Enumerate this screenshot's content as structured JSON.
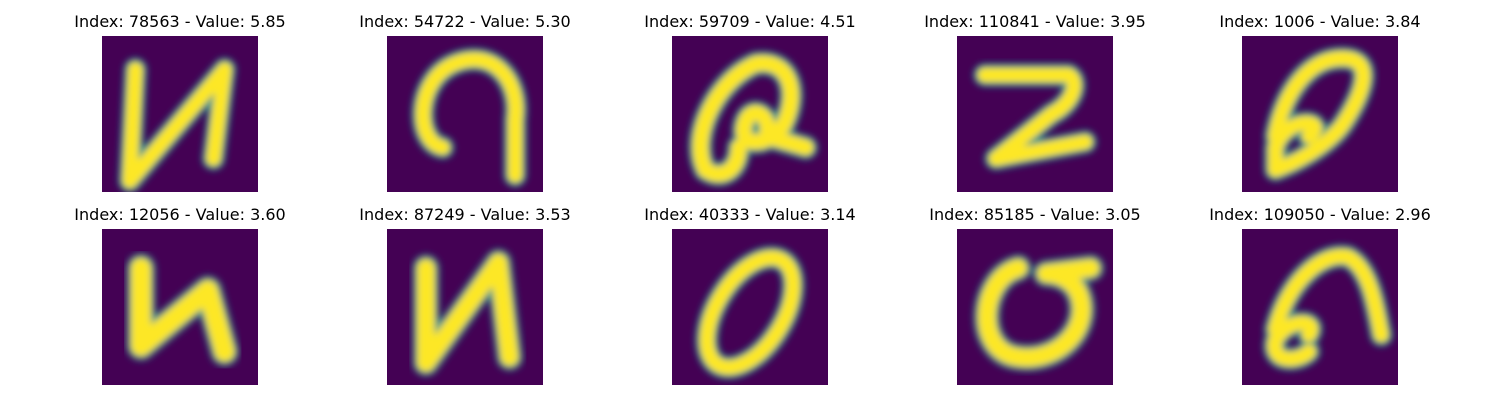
{
  "colors": {
    "background": "#440154",
    "mid": "#21918c",
    "foreground": "#fde725"
  },
  "panels": [
    {
      "title": "Index: 78563 - Value: 5.85",
      "glyph": "handwritten-N"
    },
    {
      "title": "Index: 54722 - Value: 5.30",
      "glyph": "handwritten-arch"
    },
    {
      "title": "Index: 59709 - Value: 4.51",
      "glyph": "handwritten-Q"
    },
    {
      "title": "Index: 110841 - Value: 3.95",
      "glyph": "handwritten-2"
    },
    {
      "title": "Index: 1006 - Value: 3.84",
      "glyph": "handwritten-loop"
    },
    {
      "title": "Index: 12056 - Value: 3.60",
      "glyph": "handwritten-N"
    },
    {
      "title": "Index: 87249 - Value: 3.53",
      "glyph": "handwritten-N"
    },
    {
      "title": "Index: 40333 - Value: 3.14",
      "glyph": "handwritten-0"
    },
    {
      "title": "Index: 85185 - Value: 3.05",
      "glyph": "handwritten-0"
    },
    {
      "title": "Index: 109050 - Value: 2.96",
      "glyph": "handwritten-loop"
    }
  ]
}
